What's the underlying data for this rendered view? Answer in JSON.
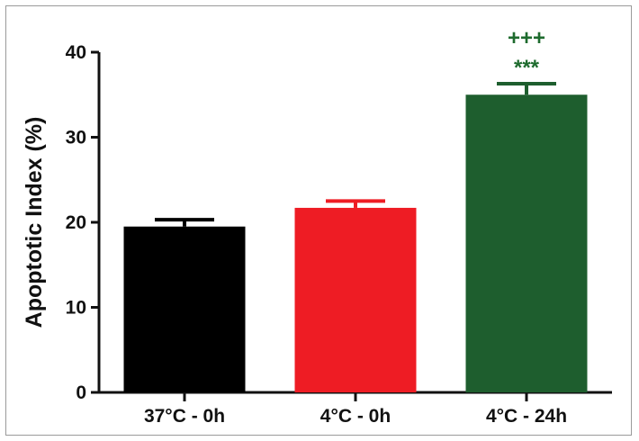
{
  "chart_data": {
    "type": "bar",
    "title": "",
    "xlabel": "",
    "ylabel": "Apoptotic Index (%)",
    "ylim": [
      0,
      40
    ],
    "yticks": [
      0,
      10,
      20,
      30,
      40
    ],
    "grid": false,
    "legend": "none",
    "categories": [
      "37°C - 0h",
      "4°C - 0h",
      "4°C - 24h"
    ],
    "values": [
      19.5,
      21.7,
      35.0
    ],
    "errors": [
      0.8,
      0.8,
      1.3
    ],
    "colors": [
      "#000000",
      "#ee1c24",
      "#1e5e2e"
    ],
    "annotations": [
      {
        "category_index": 2,
        "lines": [
          "+++",
          "***"
        ],
        "color": "#1e6b2e"
      }
    ]
  }
}
